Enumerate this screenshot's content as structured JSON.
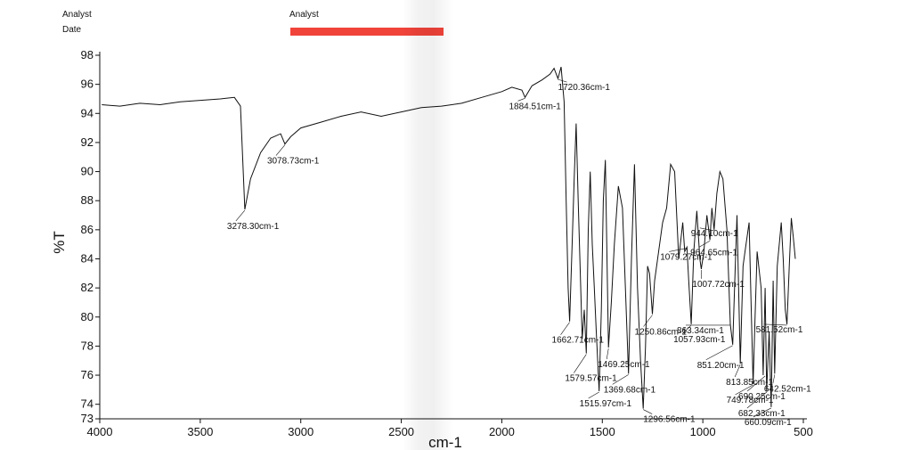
{
  "header": {
    "left_lines": [
      "Analyst",
      "Date"
    ],
    "center_line": "Analyst"
  },
  "chart_data": {
    "type": "line",
    "xlabel": "cm-1",
    "ylabel": "%T",
    "xlim": [
      4000,
      500
    ],
    "ylim": [
      73,
      98
    ],
    "x_ticks": [
      4000,
      3500,
      3000,
      2500,
      2000,
      1500,
      1000,
      500
    ],
    "y_ticks": [
      73,
      74,
      76,
      78,
      80,
      82,
      84,
      86,
      88,
      90,
      92,
      94,
      96,
      98
    ],
    "series": [
      {
        "x": [
          3990,
          3900,
          3800,
          3700,
          3600,
          3500,
          3400,
          3330,
          3300,
          3278.3,
          3250,
          3200,
          3150,
          3100,
          3078.73,
          3050,
          3000,
          2900,
          2800,
          2700,
          2600,
          2500,
          2400,
          2300,
          2200,
          2100,
          2000,
          1950,
          1900,
          1884.51,
          1850,
          1800,
          1760,
          1740,
          1720.36,
          1705,
          1690,
          1680,
          1670,
          1662.71,
          1650,
          1640,
          1630,
          1620,
          1600,
          1590,
          1579.57,
          1570,
          1560,
          1550,
          1540,
          1530,
          1515.97,
          1505,
          1495,
          1485,
          1469.25,
          1455,
          1440,
          1420,
          1400,
          1385,
          1369.68,
          1355,
          1340,
          1325,
          1310,
          1296.56,
          1285,
          1275,
          1265,
          1250.86,
          1240,
          1220,
          1200,
          1180,
          1160,
          1140,
          1120,
          1100,
          1090,
          1079.27,
          1070,
          1057.93,
          1045,
          1030,
          1015,
          1007.72,
          995,
          980,
          964.65,
          955,
          944.1,
          930,
          915,
          900,
          880,
          863.34,
          851.2,
          840,
          830,
          813.85,
          800,
          790,
          770,
          760,
          749.78,
          740,
          730,
          710,
          700,
          690,
          682.33,
          670,
          660.09,
          650,
          642.52,
          630,
          610,
          600,
          590,
          581.52,
          570,
          560,
          550,
          540
        ],
        "y": [
          94.6,
          94.5,
          94.7,
          94.6,
          94.8,
          94.9,
          95.0,
          95.1,
          94.5,
          87.4,
          89.5,
          91.3,
          92.3,
          92.6,
          91.9,
          92.4,
          93.0,
          93.4,
          93.8,
          94.1,
          93.8,
          94.1,
          94.4,
          94.5,
          94.7,
          95.1,
          95.5,
          95.8,
          95.6,
          95.1,
          95.9,
          96.3,
          96.7,
          97.1,
          96.4,
          97.2,
          94.8,
          88.0,
          82.0,
          79.7,
          85.0,
          89.5,
          93.3,
          88.0,
          78.5,
          80.5,
          77.5,
          86.0,
          90.0,
          85.0,
          82.0,
          79.0,
          74.9,
          80.5,
          88.0,
          90.8,
          77.9,
          81.0,
          85.0,
          89.0,
          87.5,
          82.0,
          76.1,
          84.0,
          90.5,
          82.0,
          77.0,
          73.7,
          78.0,
          83.5,
          83.0,
          80.2,
          82.5,
          84.5,
          86.5,
          87.5,
          90.5,
          90.0,
          84.0,
          86.5,
          84.5,
          84.8,
          82.5,
          79.5,
          84.5,
          87.3,
          84.0,
          83.3,
          84.5,
          87.0,
          85.3,
          87.5,
          86.0,
          88.5,
          90.0,
          89.5,
          86.0,
          79.5,
          78.1,
          83.0,
          87.0,
          76.8,
          83.5,
          84.5,
          86.5,
          81.0,
          75.4,
          80.0,
          84.5,
          82.0,
          76.0,
          82.0,
          74.9,
          79.0,
          73.8,
          82.5,
          76.1,
          83.5,
          86.5,
          84.0,
          80.5,
          79.5,
          83.5,
          86.8,
          85.5,
          84.0
        ]
      }
    ],
    "annotations": [
      {
        "text": "3278.30cm-1",
        "x": 3278.3,
        "y": 87.4
      },
      {
        "text": "3078.73cm-1",
        "x": 3078.73,
        "y": 91.9
      },
      {
        "text": "1884.51cm-1",
        "x": 1884.51,
        "y": 95.1
      },
      {
        "text": "1720.36cm-1",
        "x": 1720.36,
        "y": 96.4
      },
      {
        "text": "1662.71cm-1",
        "x": 1662.71,
        "y": 79.7
      },
      {
        "text": "1579.57cm-1",
        "x": 1579.57,
        "y": 77.5
      },
      {
        "text": "1469.25cm-1",
        "x": 1469.25,
        "y": 77.9
      },
      {
        "text": "1515.97cm-1",
        "x": 1515.97,
        "y": 74.9
      },
      {
        "text": "1369.68cm-1",
        "x": 1369.68,
        "y": 76.1
      },
      {
        "text": "1296.56cm-1",
        "x": 1296.56,
        "y": 73.7
      },
      {
        "text": "1250.86cm-1",
        "x": 1250.86,
        "y": 80.2
      },
      {
        "text": "1079.27cm-1",
        "x": 1079.27,
        "y": 84.8
      },
      {
        "text": "1057.93cm-1",
        "x": 1057.93,
        "y": 79.5
      },
      {
        "text": "1007.72cm-1",
        "x": 1007.72,
        "y": 83.3
      },
      {
        "text": "964.65cm-1",
        "x": 964.65,
        "y": 85.3
      },
      {
        "text": "944.10cm-1",
        "x": 944.1,
        "y": 86.0
      },
      {
        "text": "863.34cm-1",
        "x": 863.34,
        "y": 79.5
      },
      {
        "text": "851.20cm-1",
        "x": 851.2,
        "y": 78.1
      },
      {
        "text": "813.85cm-1",
        "x": 813.85,
        "y": 76.8
      },
      {
        "text": "749.78cm-1",
        "x": 749.78,
        "y": 75.4
      },
      {
        "text": "690.25cm-1",
        "x": 690.25,
        "y": 76.0
      },
      {
        "text": "682.33cm-1",
        "x": 682.33,
        "y": 74.9
      },
      {
        "text": "660.09cm-1",
        "x": 660.09,
        "y": 73.8
      },
      {
        "text": "642.52cm-1",
        "x": 642.52,
        "y": 76.1
      },
      {
        "text": "581.52cm-1",
        "x": 581.52,
        "y": 79.5
      }
    ]
  }
}
